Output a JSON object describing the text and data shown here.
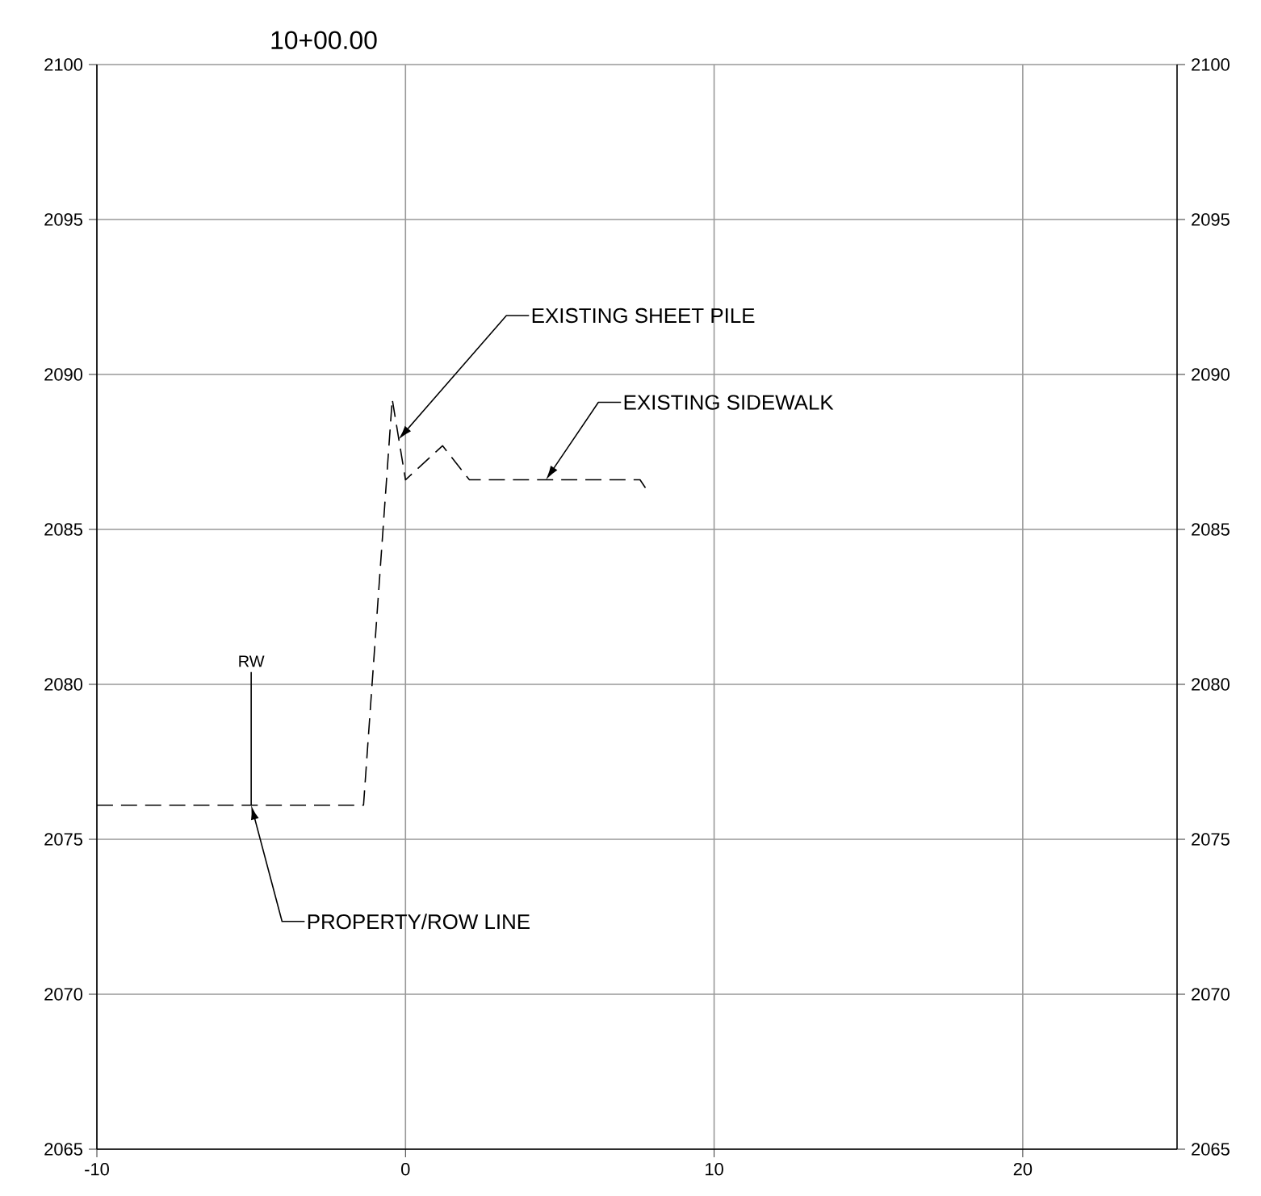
{
  "chart_data": {
    "type": "line",
    "title": "10+00.00",
    "x": [
      -10,
      -1.36,
      -0.43,
      0,
      1.2,
      2.07,
      7.6,
      7.87
    ],
    "series": [
      {
        "color": "#000000",
        "values": [
          2076.1,
          2076.1,
          2089.2,
          2086.6,
          2087.7,
          2086.6,
          2086.6,
          2086.2
        ]
      }
    ],
    "xlim": [
      -10,
      25
    ],
    "ylim": [
      2065,
      2100
    ],
    "xticks": [
      -10,
      0,
      10,
      20
    ],
    "yticks": [
      2065,
      2070,
      2075,
      2080,
      2085,
      2090,
      2095,
      2100
    ],
    "y2lim": [
      2065,
      2100
    ],
    "y2ticks": [
      2065,
      2070,
      2075,
      2080,
      2085,
      2090,
      2095,
      2100
    ],
    "grid": true,
    "marker": "none",
    "line_style": "dashed",
    "annotations": [
      {
        "text": "EXISTING SHEET PILE",
        "x": -0.23,
        "y": 2087.9
      },
      {
        "text": "EXISTING SIDEWALK",
        "x": 4.55,
        "y": 2086.6
      },
      {
        "text": "RW",
        "x": -5,
        "y": 2076.1
      },
      {
        "text": "PROPERTY/ROW LINE",
        "x": -5,
        "y": 2076.1
      }
    ]
  }
}
